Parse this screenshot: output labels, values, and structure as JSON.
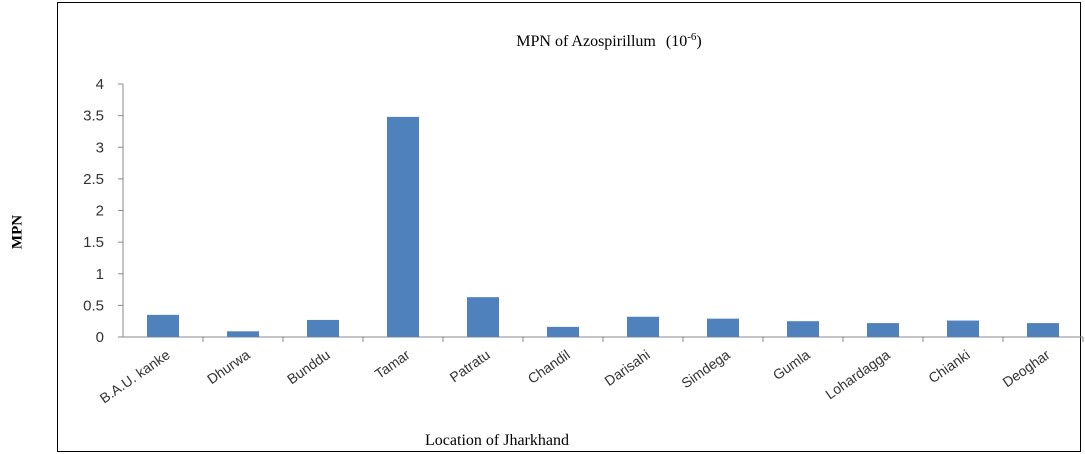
{
  "chart_data": {
    "type": "bar",
    "title": "MPN of Azospirillum",
    "title_suffix": "(10",
    "title_exponent": "-6",
    "title_close": ")",
    "xlabel": "Location of Jharkhand",
    "ylabel": "MPN",
    "ylim": [
      0,
      4
    ],
    "yticks": [
      "0",
      "0.5",
      "1",
      "1.5",
      "2",
      "2.5",
      "3",
      "3.5",
      "4"
    ],
    "categories": [
      "B.A.U. kanke",
      "Dhurwa",
      "Bunddu",
      "Tamar",
      "Patratu",
      "Chandil",
      "Darisahi",
      "Simdega",
      "Gumla",
      "Lohardagga",
      "Chianki",
      "Deoghar"
    ],
    "values": [
      0.35,
      0.09,
      0.27,
      3.48,
      0.63,
      0.16,
      0.32,
      0.29,
      0.25,
      0.22,
      0.26,
      0.22
    ],
    "bar_color": "#4f81bd",
    "grid": false
  }
}
